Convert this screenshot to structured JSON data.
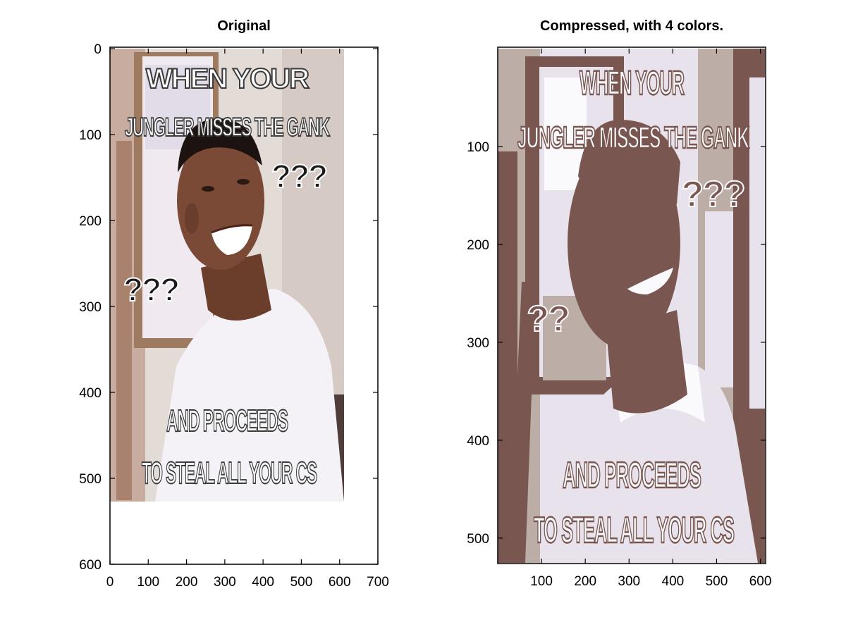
{
  "chart_data": [
    {
      "type": "image",
      "title": "Original",
      "xlim": [
        0,
        700
      ],
      "ylim": [
        0,
        600
      ],
      "y_reversed": true,
      "xticks": [
        0,
        100,
        200,
        300,
        400,
        500,
        600,
        700
      ],
      "yticks": [
        0,
        100,
        200,
        300,
        400,
        500,
        600
      ],
      "image_extent": {
        "x": [
          0,
          612
        ],
        "y": [
          0,
          526
        ]
      },
      "image_text": {
        "top": [
          "WHEN YOUR",
          "JUNGLER MISSES THE GANK"
        ],
        "marks": [
          "???",
          "???"
        ],
        "bottom": [
          "AND PROCEEDS",
          "TO STEAL ALL YOUR CS"
        ]
      }
    },
    {
      "type": "image",
      "title": "Compressed, with 4 colors.",
      "xlim": [
        0,
        612
      ],
      "ylim": [
        0,
        526
      ],
      "y_reversed": true,
      "xticks": [
        100,
        200,
        300,
        400,
        500,
        600
      ],
      "yticks": [
        100,
        200,
        300,
        400,
        500
      ],
      "image_extent": {
        "x": [
          0,
          612
        ],
        "y": [
          0,
          526
        ]
      },
      "palette": [
        "#7a5651",
        "#bcaea6",
        "#e7e2ec",
        "#fafafd"
      ],
      "image_text": {
        "top": [
          "WHEN YOUR",
          "JUNGLER MISSES THE GANK"
        ],
        "marks": [
          "???",
          "??"
        ],
        "bottom": [
          "AND PROCEEDS",
          "TO STEAL ALL YOUR CS"
        ]
      }
    }
  ]
}
